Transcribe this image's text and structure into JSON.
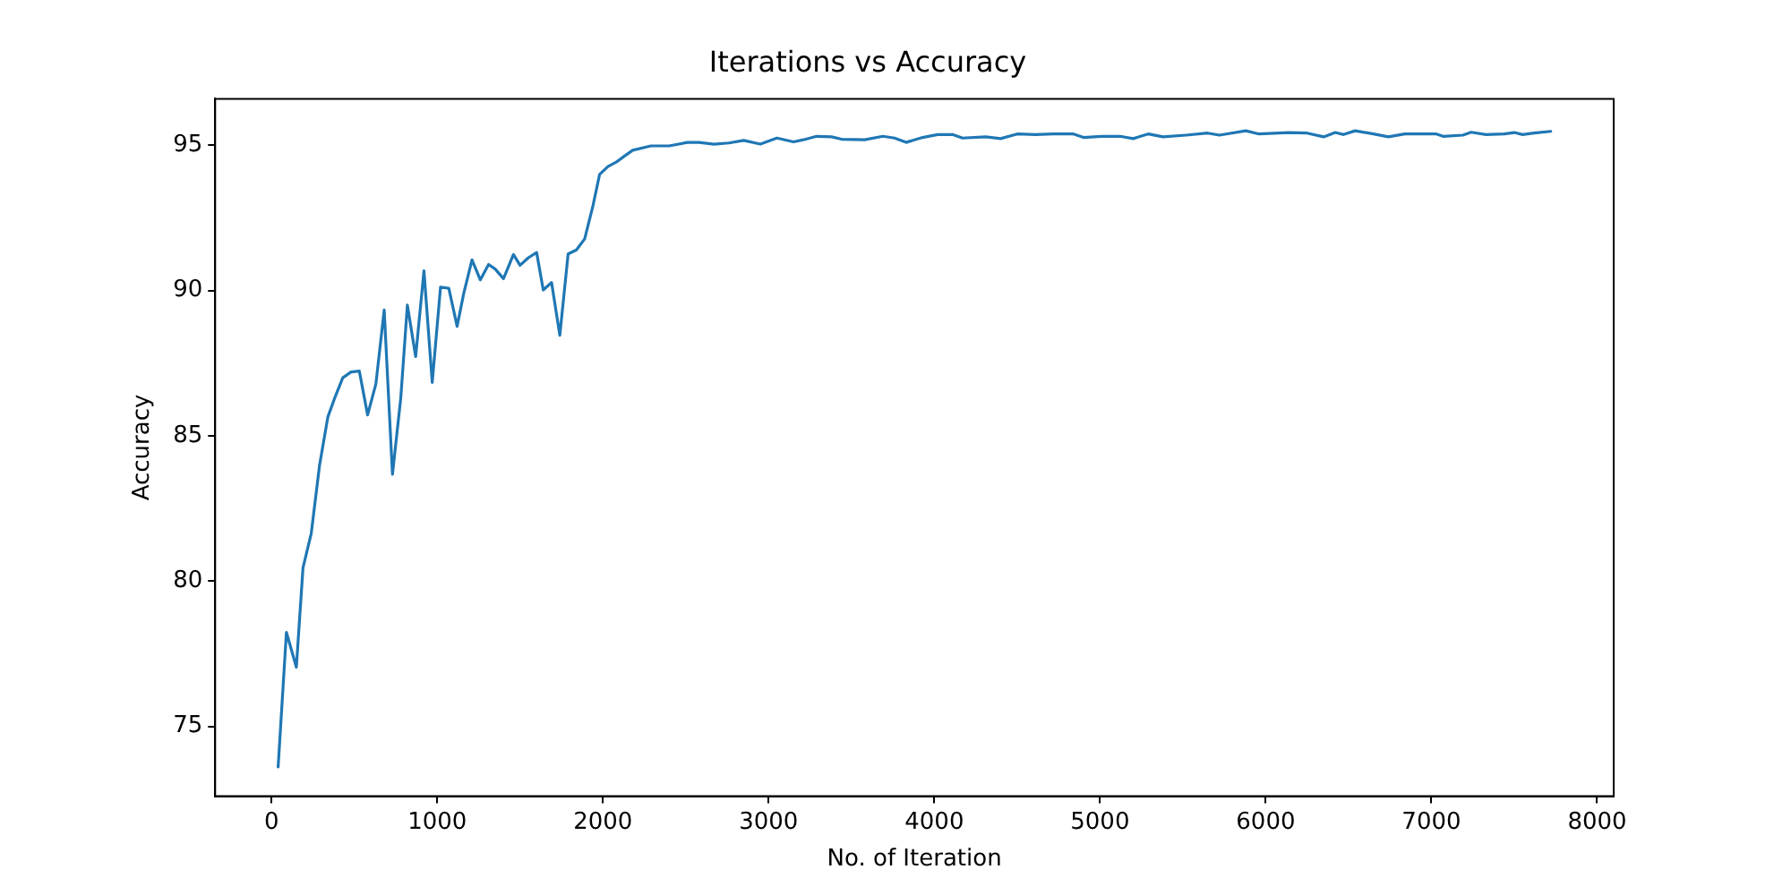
{
  "chart_data": {
    "type": "line",
    "title": "Iterations vs Accuracy",
    "xlabel": "No. of Iteration",
    "ylabel": "Accuracy",
    "x": [
      40,
      90,
      150,
      190,
      240,
      290,
      340,
      380,
      430,
      480,
      530,
      580,
      630,
      680,
      730,
      780,
      820,
      870,
      920,
      970,
      1020,
      1070,
      1120,
      1160,
      1210,
      1260,
      1310,
      1350,
      1400,
      1460,
      1500,
      1550,
      1600,
      1640,
      1690,
      1740,
      1790,
      1840,
      1890,
      1940,
      1980,
      2030,
      2080,
      2130,
      2180,
      2290,
      2400,
      2510,
      2580,
      2670,
      2760,
      2850,
      2950,
      3050,
      3150,
      3210,
      3290,
      3380,
      3440,
      3580,
      3690,
      3760,
      3830,
      3930,
      4020,
      4110,
      4170,
      4310,
      4400,
      4500,
      4610,
      4720,
      4840,
      4900,
      5010,
      5120,
      5200,
      5290,
      5380,
      5520,
      5650,
      5720,
      5880,
      5960,
      6140,
      6250,
      6350,
      6420,
      6470,
      6540,
      6650,
      6740,
      6840,
      7030,
      7070,
      7190,
      7240,
      7330,
      7440,
      7500,
      7550,
      7620,
      7720
    ],
    "series": [
      {
        "color": "#1f77b4",
        "values": [
          73.61,
          78.24,
          77.04,
          80.46,
          81.65,
          83.99,
          85.65,
          86.28,
          87.0,
          87.2,
          87.23,
          85.72,
          86.79,
          89.33,
          83.68,
          86.3,
          89.5,
          87.73,
          90.68,
          86.84,
          90.12,
          90.08,
          88.77,
          89.9,
          91.06,
          90.37,
          90.9,
          90.74,
          90.41,
          91.24,
          90.87,
          91.13,
          91.31,
          90.02,
          90.28,
          88.46,
          91.26,
          91.4,
          91.78,
          92.92,
          94.0,
          94.27,
          94.42,
          94.63,
          94.83,
          94.98,
          94.98,
          95.1,
          95.1,
          95.04,
          95.08,
          95.17,
          95.04,
          95.25,
          95.12,
          95.19,
          95.31,
          95.29,
          95.21,
          95.19,
          95.31,
          95.25,
          95.1,
          95.27,
          95.37,
          95.37,
          95.25,
          95.29,
          95.23,
          95.39,
          95.37,
          95.39,
          95.39,
          95.27,
          95.31,
          95.31,
          95.23,
          95.39,
          95.29,
          95.35,
          95.42,
          95.35,
          95.5,
          95.39,
          95.44,
          95.42,
          95.29,
          95.44,
          95.37,
          95.5,
          95.39,
          95.29,
          95.39,
          95.39,
          95.31,
          95.35,
          95.45,
          95.37,
          95.39,
          95.44,
          95.37,
          95.42,
          95.48
        ]
      }
    ],
    "xlim": [
      -340,
      8100
    ],
    "ylim": [
      72.6,
      96.6
    ],
    "xticks": [
      0,
      1000,
      2000,
      3000,
      4000,
      5000,
      6000,
      7000,
      8000
    ],
    "yticks": [
      75,
      80,
      85,
      90,
      95
    ],
    "grid": false,
    "legend": false,
    "marker": "none",
    "line_style": "solid"
  }
}
